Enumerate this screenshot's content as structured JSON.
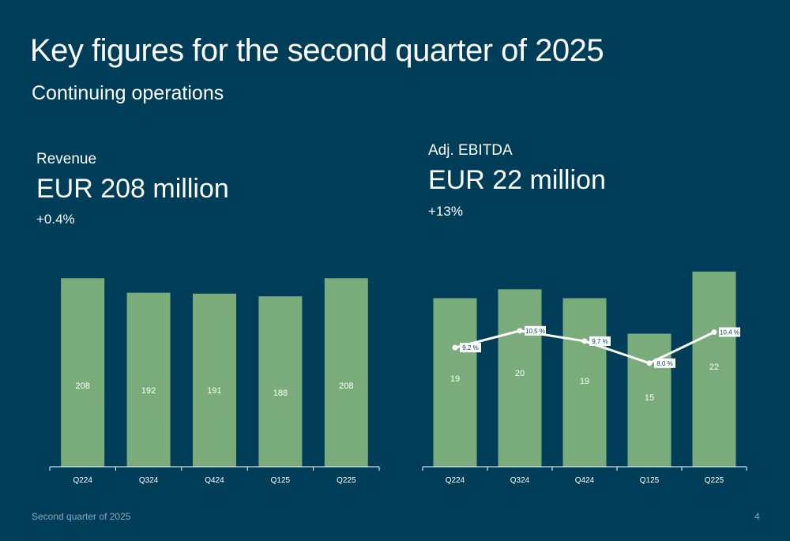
{
  "header": {
    "title": "Key figures for the second quarter of 2025",
    "subtitle": "Continuing operations"
  },
  "revenue": {
    "label": "Revenue",
    "value": "EUR 208 million",
    "change": "+0.4%"
  },
  "ebitda": {
    "label": "Adj. EBITDA",
    "value": "EUR 22 million",
    "change": "+13%"
  },
  "footer": {
    "text": "Second quarter of 2025",
    "page": "4"
  },
  "colors": {
    "background": "#003d58",
    "bar": "#7aab7b",
    "line": "#ffffff"
  },
  "chart_data": [
    {
      "type": "bar",
      "categories": [
        "Q224",
        "Q324",
        "Q424",
        "Q125",
        "Q225"
      ],
      "values": [
        208,
        192,
        191,
        188,
        208
      ],
      "ylim": [
        0,
        230
      ]
    },
    {
      "type": "bar",
      "categories": [
        "Q224",
        "Q324",
        "Q424",
        "Q125",
        "Q225"
      ],
      "values": [
        19,
        20,
        19,
        15,
        22
      ],
      "ylim": [
        0,
        23.5
      ],
      "line_series": {
        "values": [
          9.2,
          10.5,
          9.7,
          8.0,
          10.4
        ],
        "labels": [
          "9,2 %",
          "10,5 %",
          "9,7 %",
          "8,0 %",
          "10,4 %"
        ],
        "ylim": [
          0,
          16.1
        ]
      }
    }
  ]
}
